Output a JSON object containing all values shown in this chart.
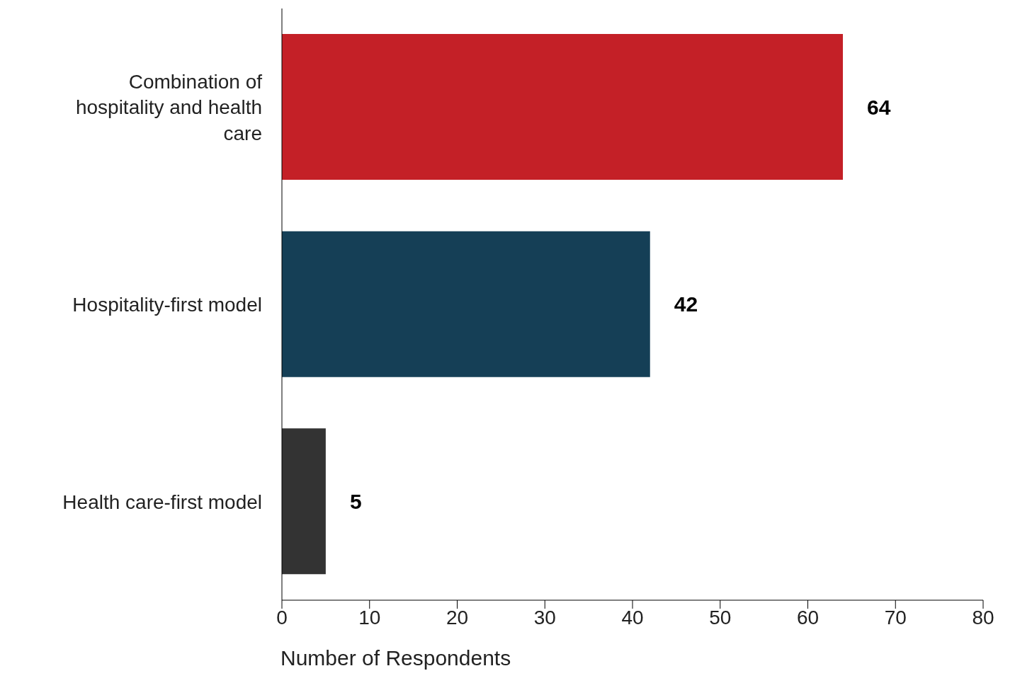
{
  "chart_data": {
    "type": "bar",
    "orientation": "horizontal",
    "xlabel": "Number of Respondents",
    "categories": [
      "Combination of hospitality and health care",
      "Hospitality-first model",
      "Health care-first model"
    ],
    "values": [
      64,
      42,
      5
    ],
    "colors": [
      "#c42027",
      "#153f56",
      "#333333"
    ],
    "xlim": [
      0,
      80
    ],
    "xticks": [
      0,
      10,
      20,
      30,
      40,
      50,
      60,
      70,
      80
    ],
    "data_labels": true,
    "grid": false,
    "legend": false
  }
}
